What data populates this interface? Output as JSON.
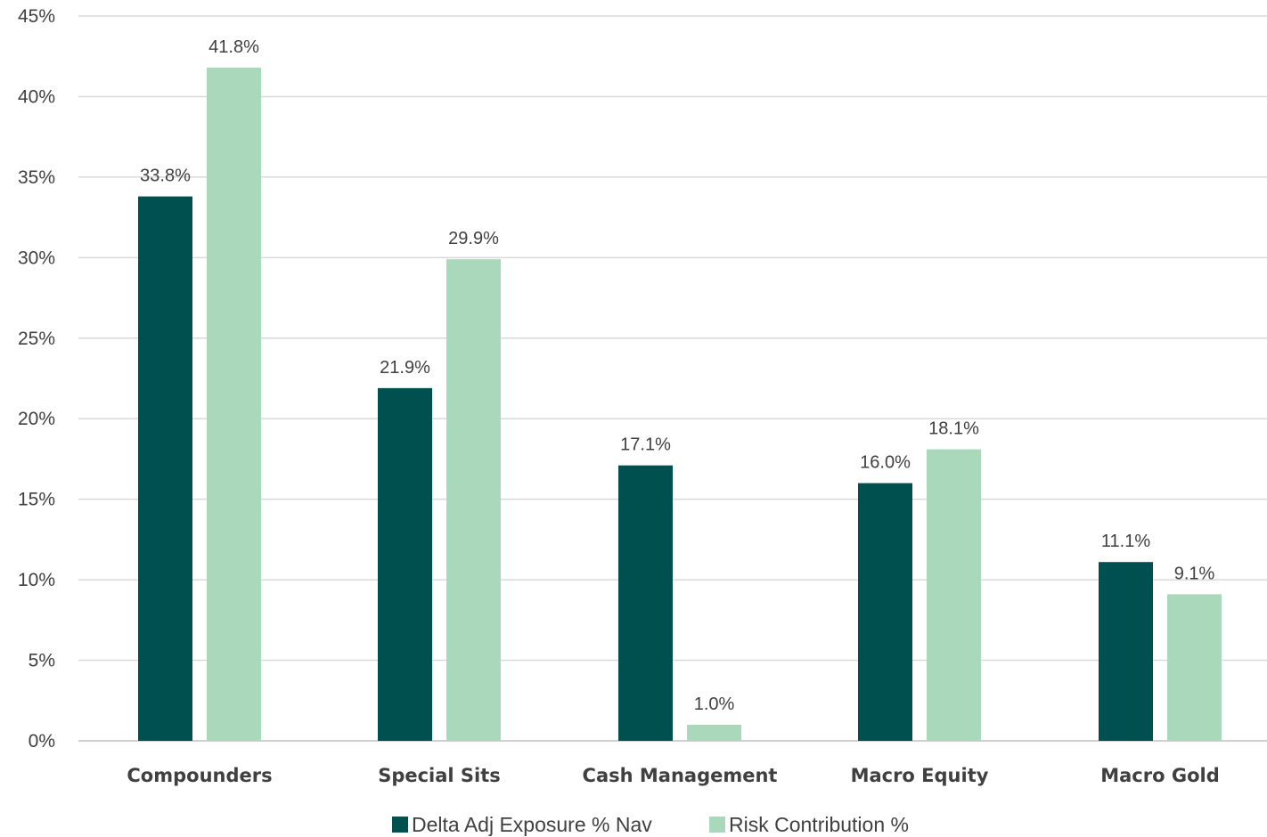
{
  "chart_data": {
    "type": "bar",
    "title": "",
    "xlabel": "",
    "ylabel": "",
    "categories": [
      "Compounders",
      "Special Sits",
      "Cash Management",
      "Macro Equity",
      "Macro Gold"
    ],
    "series": [
      {
        "name": "Delta Adj Exposure % Nav",
        "color": "#00504f",
        "values": [
          33.8,
          21.9,
          17.1,
          16.0,
          11.1
        ],
        "labels": [
          "33.8%",
          "21.9%",
          "17.1%",
          "16.0%",
          "11.1%"
        ]
      },
      {
        "name": "Risk Contribution %",
        "color": "#aad8bb",
        "values": [
          41.8,
          29.9,
          1.0,
          18.1,
          9.1
        ],
        "labels": [
          "41.8%",
          "29.9%",
          "1.0%",
          "18.1%",
          "9.1%"
        ]
      }
    ],
    "ylim": [
      0,
      45
    ],
    "yticks": [
      0,
      5,
      10,
      15,
      20,
      25,
      30,
      35,
      40,
      45
    ],
    "ytick_labels": [
      "0%",
      "5%",
      "10%",
      "15%",
      "20%",
      "25%",
      "30%",
      "35%",
      "40%",
      "45%"
    ],
    "grid": true,
    "legend_position": "bottom"
  }
}
